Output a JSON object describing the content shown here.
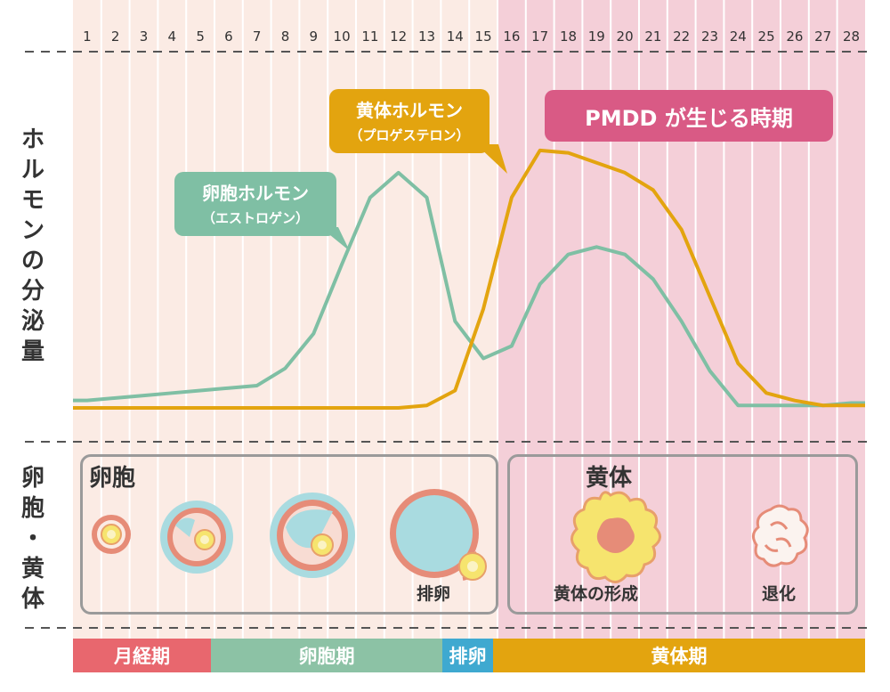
{
  "side_labels": {
    "hormone": [
      "ホ",
      "ル",
      "モ",
      "ン",
      "の",
      "分",
      "泌",
      "量"
    ],
    "body": [
      "卵",
      "胞",
      "・",
      "黄",
      "体"
    ]
  },
  "callouts": {
    "estrogen": {
      "title": "卵胞ホルモン",
      "sub": "（エストロゲン）",
      "color": "#7fbfa4"
    },
    "progesterone": {
      "title": "黄体ホルモン",
      "sub": "（プロゲステロン）",
      "color": "#e3a40f"
    },
    "pmdd": {
      "label": "PMDD が生じる時期",
      "color": "#d95a85"
    }
  },
  "boxes": {
    "follicle": {
      "label": "卵胞",
      "ovulation_caption": "排卵"
    },
    "corpus": {
      "label": "黄体",
      "formation_caption": "黄体の形成",
      "regression_caption": "退化"
    }
  },
  "phases": [
    {
      "label": "月経期",
      "color": "#e8676e"
    },
    {
      "label": "卵胞期",
      "color": "#8cc2a5"
    },
    {
      "label": "排卵",
      "color": "#3fa9d0"
    },
    {
      "label": "黄体期",
      "color": "#e3a40f"
    }
  ],
  "chart_data": {
    "type": "line",
    "x": [
      1,
      2,
      3,
      4,
      5,
      6,
      7,
      8,
      9,
      10,
      11,
      12,
      13,
      14,
      15,
      16,
      17,
      18,
      19,
      20,
      21,
      22,
      23,
      24,
      25,
      26,
      27,
      28
    ],
    "xtick_labels": [
      "1",
      "2",
      "3",
      "4",
      "5",
      "6",
      "7",
      "8",
      "9",
      "10",
      "11",
      "12",
      "13",
      "14",
      "15",
      "16",
      "17",
      "18",
      "19",
      "20",
      "21",
      "22",
      "23",
      "24",
      "25",
      "26",
      "27",
      "28"
    ],
    "ylim": [
      0,
      100
    ],
    "grid": false,
    "highlight_from_day": 16,
    "series": [
      {
        "name": "卵胞ホルモン",
        "color": "#7fbfa4",
        "values": [
          3,
          4,
          5,
          6,
          7,
          8,
          9,
          16,
          30,
          58,
          85,
          95,
          85,
          35,
          20,
          25,
          50,
          62,
          65,
          62,
          52,
          35,
          15,
          1,
          1,
          1,
          1,
          2
        ]
      },
      {
        "name": "黄体ホルモン",
        "color": "#e3a40f",
        "values": [
          0,
          0,
          0,
          0,
          0,
          0,
          0,
          0,
          0,
          0,
          0,
          0,
          1,
          7,
          40,
          85,
          104,
          103,
          99,
          95,
          88,
          72,
          45,
          18,
          6,
          3,
          1,
          1
        ]
      }
    ]
  }
}
